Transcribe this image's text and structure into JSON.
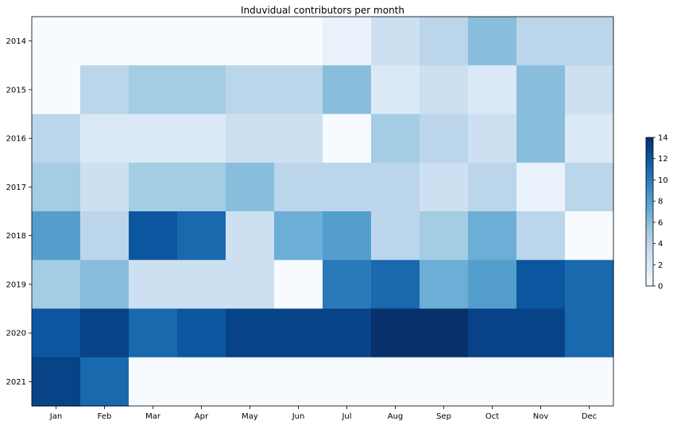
{
  "chart_data": {
    "type": "heatmap",
    "title": "Induvidual contributors per month",
    "xlabel": "",
    "ylabel": "",
    "x_categories": [
      "Jan",
      "Feb",
      "Mar",
      "Apr",
      "May",
      "Jun",
      "Jul",
      "Aug",
      "Sep",
      "Oct",
      "Nov",
      "Dec"
    ],
    "y_categories": [
      "2014",
      "2015",
      "2016",
      "2017",
      "2018",
      "2019",
      "2020",
      "2021"
    ],
    "values": [
      [
        0,
        0,
        0,
        0,
        0,
        0,
        1,
        3,
        4,
        6,
        4,
        4
      ],
      [
        0,
        4,
        5,
        5,
        4,
        4,
        6,
        2,
        3,
        2,
        6,
        3
      ],
      [
        4,
        2,
        2,
        2,
        3,
        3,
        0,
        5,
        4,
        3,
        6,
        2
      ],
      [
        5,
        3,
        5,
        5,
        6,
        4,
        4,
        4,
        3,
        4,
        1,
        4
      ],
      [
        8,
        4,
        12,
        11,
        3,
        7,
        8,
        4,
        5,
        7,
        4,
        0
      ],
      [
        5,
        6,
        3,
        3,
        3,
        0,
        10,
        11,
        7,
        8,
        12,
        11
      ],
      [
        12,
        13,
        11,
        12,
        13,
        13,
        13,
        14,
        16,
        13,
        13,
        11
      ],
      [
        13,
        11,
        0,
        0,
        0,
        0,
        0,
        0,
        0,
        0,
        0,
        0
      ]
    ],
    "colormap": "Blues",
    "colorbar": {
      "min": 0,
      "max": 14,
      "ticks": [
        "0",
        "2",
        "4",
        "6",
        "8",
        "10",
        "12",
        "14"
      ]
    },
    "grid": false,
    "legend": "none"
  }
}
